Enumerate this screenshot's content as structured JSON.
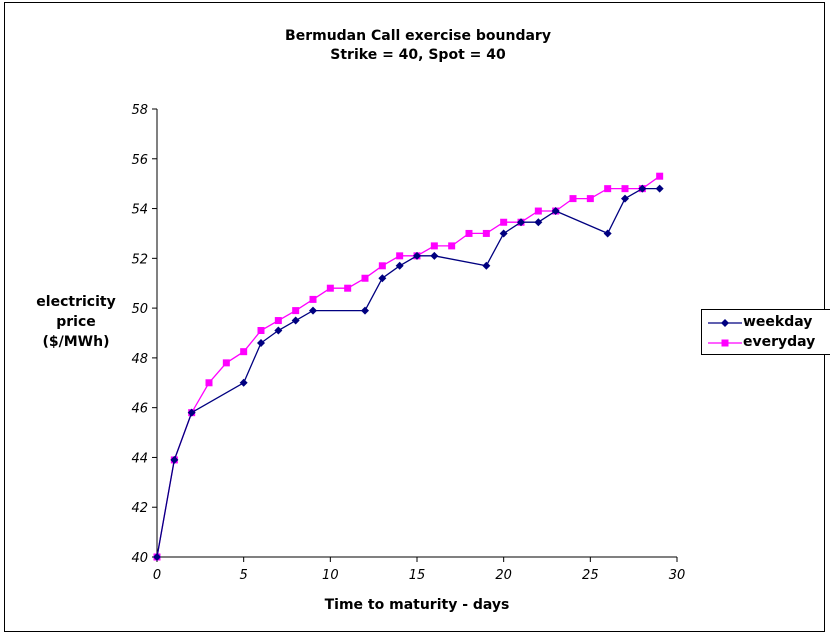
{
  "chart_data": {
    "type": "line",
    "title": "Bermudan Call exercise boundary",
    "subtitle": "Strike = 40, Spot = 40",
    "xlabel": "Time to maturity - days",
    "ylabel": [
      "electricity",
      "price",
      "($/MWh)"
    ],
    "xlim": [
      0,
      30
    ],
    "ylim": [
      40,
      58
    ],
    "xticks": [
      0,
      5,
      10,
      15,
      20,
      25,
      30
    ],
    "yticks": [
      40,
      42,
      44,
      46,
      48,
      50,
      52,
      54,
      56,
      58
    ],
    "grid": false,
    "legend_position": "right",
    "series": [
      {
        "name": "weekday",
        "color": "#000080",
        "marker": "diamond",
        "x": [
          0,
          1,
          2,
          5,
          6,
          7,
          8,
          9,
          12,
          13,
          14,
          15,
          16,
          19,
          20,
          21,
          22,
          23,
          26,
          27,
          28,
          29
        ],
        "y": [
          40.0,
          43.9,
          45.8,
          47.0,
          48.6,
          49.1,
          49.5,
          49.9,
          49.9,
          51.2,
          51.7,
          52.1,
          52.1,
          51.7,
          53.0,
          53.45,
          53.45,
          53.9,
          53.0,
          54.4,
          54.8,
          54.8
        ]
      },
      {
        "name": "everyday",
        "color": "#ff00ff",
        "marker": "square",
        "x": [
          0,
          1,
          2,
          3,
          4,
          5,
          6,
          7,
          8,
          9,
          10,
          11,
          12,
          13,
          14,
          15,
          16,
          17,
          18,
          19,
          20,
          21,
          22,
          23,
          24,
          25,
          26,
          27,
          28,
          29
        ],
        "y": [
          40.0,
          43.9,
          45.8,
          47.0,
          47.8,
          48.25,
          49.1,
          49.5,
          49.9,
          50.35,
          50.8,
          50.8,
          51.2,
          51.7,
          52.1,
          52.1,
          52.5,
          52.5,
          53.0,
          53.0,
          53.45,
          53.45,
          53.9,
          53.9,
          54.4,
          54.4,
          54.8,
          54.8,
          54.8,
          55.3
        ]
      }
    ]
  }
}
